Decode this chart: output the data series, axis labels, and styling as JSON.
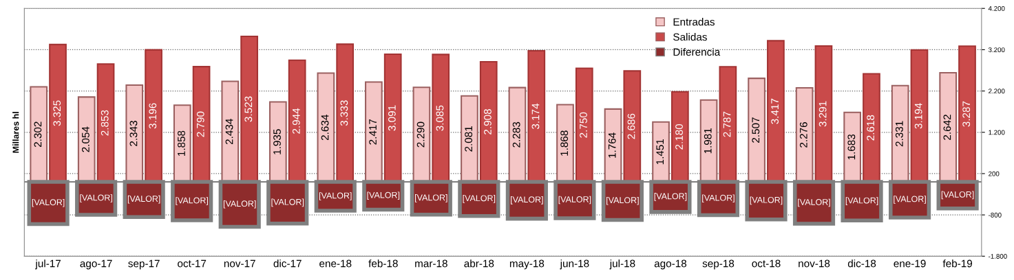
{
  "chart_data": {
    "type": "bar",
    "ylabel": "Millares hl",
    "categories": [
      "jul-17",
      "ago-17",
      "sep-17",
      "oct-17",
      "nov-17",
      "dic-17",
      "ene-18",
      "feb-18",
      "mar-18",
      "abr-18",
      "may-18",
      "jun-18",
      "jul-18",
      "ago-18",
      "sep-18",
      "oct-18",
      "nov-18",
      "dic-18",
      "ene-19",
      "feb-19"
    ],
    "series": [
      {
        "name": "Entradas",
        "color": "#f4c6c6",
        "values": [
          2302,
          2054,
          2343,
          1858,
          2434,
          1935,
          2634,
          2417,
          2290,
          2081,
          2283,
          1868,
          1764,
          1451,
          1981,
          2507,
          2276,
          1683,
          2331,
          2642
        ],
        "value_labels": [
          "2.302",
          "2.054",
          "2.343",
          "1.858",
          "2.434",
          "1.935",
          "2.634",
          "2.417",
          "2.290",
          "2.081",
          "2.283",
          "1.868",
          "1.764",
          "1.451",
          "1.981",
          "2.507",
          "2.276",
          "1.683",
          "2.331",
          "2.642"
        ]
      },
      {
        "name": "Salidas",
        "color": "#c94a4a",
        "values": [
          3325,
          2853,
          3196,
          2790,
          3523,
          2944,
          3333,
          3091,
          3085,
          2908,
          3174,
          2750,
          2686,
          2180,
          2787,
          3417,
          3291,
          2618,
          3194,
          3287
        ],
        "value_labels": [
          "3.325",
          "2.853",
          "3.196",
          "2.790",
          "3.523",
          "2.944",
          "3.333",
          "3.091",
          "3.085",
          "2.908",
          "3.174",
          "2.750",
          "2.686",
          "2.180",
          "2.787",
          "3.417",
          "3.291",
          "2.618",
          "3.194",
          "3.287"
        ]
      },
      {
        "name": "Diferencia",
        "color": "#8e2c2c",
        "values": [
          -1023,
          -799,
          -853,
          -932,
          -1089,
          -1009,
          -699,
          -674,
          -795,
          -827,
          -891,
          -882,
          -922,
          -729,
          -806,
          -910,
          -1015,
          -935,
          -863,
          -645
        ],
        "value_labels": [
          "[VALOR]",
          "[VALOR]",
          "[VALOR]",
          "[VALOR]",
          "[VALOR]",
          "[VALOR]",
          "[VALOR]",
          "[VALOR]",
          "[VALOR]",
          "[VALOR]",
          "[VALOR]",
          "[VALOR]",
          "[VALOR]",
          "[VALOR]",
          "[VALOR]",
          "[VALOR]",
          "[VALOR]",
          "[VALOR]",
          "[VALOR]",
          "[VALOR]"
        ]
      }
    ],
    "ylim": [
      -1800,
      4200
    ],
    "yticks": [
      {
        "value": 4200,
        "label": "4.200"
      },
      {
        "value": 3200,
        "label": "3.200"
      },
      {
        "value": 2200,
        "label": "2.200"
      },
      {
        "value": 1200,
        "label": "1.200"
      },
      200,
      {
        "value": -800,
        "label": "-800"
      },
      {
        "value": -1800,
        "label": "-1.800"
      }
    ],
    "grid": "y",
    "legend": "top"
  }
}
